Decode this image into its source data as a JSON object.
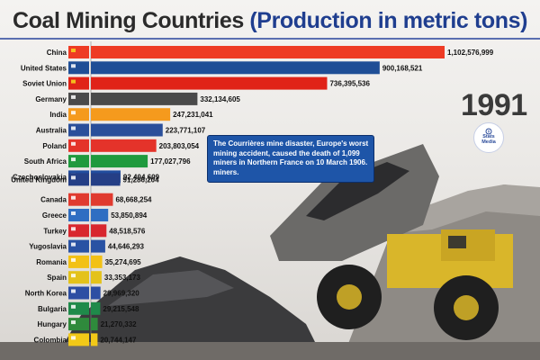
{
  "header": {
    "title_main": "Coal Mining Countries",
    "title_sub": "(Production in metric tons)"
  },
  "year": "1991",
  "logo": {
    "text": "Stats\nMedia",
    "icon": "info-icon"
  },
  "annotation": {
    "text": "The Courrières mine disaster, Europe's worst mining accident, caused the death of 1,099 miners in Northern France on 10 March 1906. miners."
  },
  "chart_data": {
    "type": "bar",
    "orientation": "horizontal",
    "title": "Coal Mining Countries (Production in metric tons)",
    "xlim": [
      0,
      1102576999
    ],
    "categories": [
      "China",
      "United States",
      "Soviet Union",
      "Germany",
      "India",
      "Australia",
      "Poland",
      "South Africa",
      "Czechoslovakia",
      "United Kingdom",
      "Canada",
      "Greece",
      "Turkey",
      "Yugoslavia",
      "Romania",
      "Spain",
      "North Korea",
      "Bulgaria",
      "Hungary",
      "Colombia"
    ],
    "values": [
      1102576999,
      900168521,
      736395536,
      332134605,
      247231041,
      223771107,
      203803054,
      177027796,
      92404609,
      91286204,
      68668254,
      53850894,
      48518576,
      44646293,
      35274695,
      33353173,
      29969320,
      29215548,
      21270332,
      20744147
    ],
    "value_labels": [
      "1,102,576,999",
      "900,168,521",
      "736,395,536",
      "332,134,605",
      "247,231,041",
      "223,771,107",
      "203,803,054",
      "177,027,796",
      "92,404,609",
      "91,286,204",
      "68,668,254",
      "53,850,894",
      "48,518,576",
      "44,646,293",
      "35,274,695",
      "33,353,173",
      "29,969,320",
      "29,215,548",
      "21,270,332",
      "20,744,147"
    ],
    "colors": [
      "#ee3b24",
      "#1f4e96",
      "#e02318",
      "#4a4a4a",
      "#f59a1d",
      "#2a4f9a",
      "#e4332a",
      "#1f9a3e",
      "#214d9e",
      "#253f86",
      "#e03a2f",
      "#2f6ec2",
      "#d8272e",
      "#2952a3",
      "#f2c116",
      "#e4c21a",
      "#2d4ea3",
      "#1f8a4a",
      "#2f8a3c",
      "#f2c918"
    ],
    "flags": [
      "china",
      "united-states",
      "soviet-union",
      "germany",
      "india",
      "australia",
      "poland",
      "south-africa",
      "czechoslovakia",
      "united-kingdom",
      "canada",
      "greece",
      "turkey",
      "yugoslavia",
      "romania",
      "spain",
      "north-korea",
      "bulgaria",
      "hungary",
      "colombia"
    ]
  }
}
